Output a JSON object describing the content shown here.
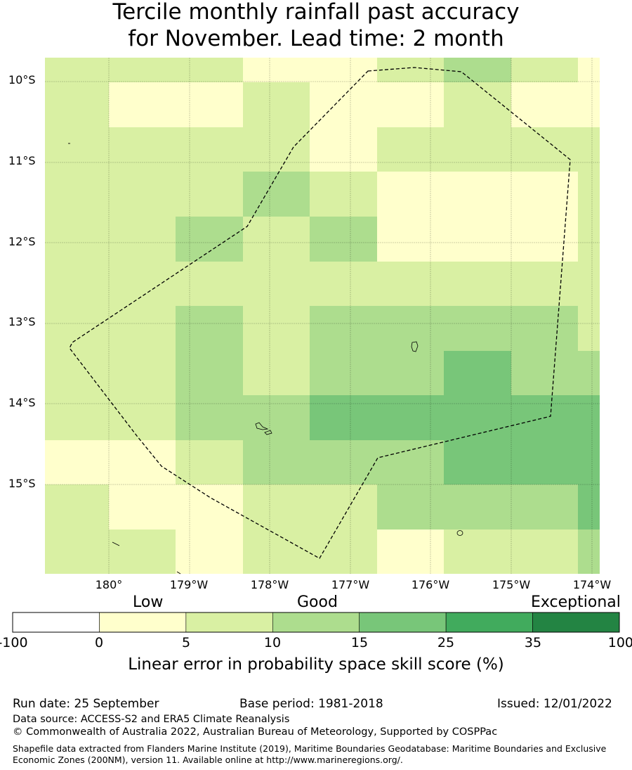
{
  "title": {
    "line1": "Tercile monthly rainfall past accuracy",
    "line2": "for November. Lead time: 2 month"
  },
  "map": {
    "lat_labels": [
      "10°S",
      "11°S",
      "12°S",
      "13°S",
      "14°S",
      "15°S"
    ],
    "lon_labels": [
      "180°",
      "179°W",
      "178°W",
      "177°W",
      "176°W",
      "175°W",
      "174°W"
    ],
    "grid": [
      [
        2,
        2,
        2,
        1,
        1,
        2,
        3,
        2,
        1
      ],
      [
        2,
        1,
        1,
        2,
        1,
        1,
        2,
        1,
        1
      ],
      [
        2,
        2,
        2,
        2,
        1,
        2,
        2,
        2,
        2
      ],
      [
        2,
        2,
        2,
        3,
        2,
        1,
        1,
        1,
        2
      ],
      [
        2,
        2,
        3,
        2,
        3,
        1,
        1,
        1,
        2
      ],
      [
        2,
        2,
        2,
        2,
        2,
        2,
        2,
        2,
        2
      ],
      [
        2,
        2,
        3,
        2,
        3,
        3,
        3,
        3,
        2
      ],
      [
        2,
        2,
        3,
        2,
        3,
        3,
        4,
        3,
        3
      ],
      [
        2,
        2,
        3,
        3,
        4,
        4,
        4,
        4,
        4
      ],
      [
        1,
        1,
        2,
        3,
        3,
        3,
        4,
        4,
        4
      ],
      [
        2,
        1,
        1,
        2,
        2,
        3,
        3,
        3,
        4
      ],
      [
        2,
        2,
        1,
        2,
        2,
        1,
        2,
        2,
        3
      ]
    ],
    "colors": [
      "#ffffff",
      "#ffffcc",
      "#d9f0a3",
      "#addd8e",
      "#78c679",
      "#41ab5d",
      "#238443"
    ]
  },
  "colorbar": {
    "categories": [
      "Low",
      "Good",
      "Exceptional"
    ],
    "ticks": [
      "-100",
      "0",
      "5",
      "10",
      "15",
      "25",
      "35",
      "100"
    ],
    "label": "Linear error in probability space skill score (%)"
  },
  "footer": {
    "run_date": "Run date: 25 September",
    "base_period": "Base period: 1981-2018",
    "issued": "Issued: 12/01/2022",
    "data_source": "Data source: ACCESS-S2 and ERA5 Climate Reanalysis",
    "copyright": "© Commonwealth of Australia 2022, Australian Bureau of Meteorology, Supported by COSPPac",
    "shapefile": "Shapefile data extracted from Flanders Marine Institute (2019), Maritime Boundaries Geodatabase: Maritime Boundaries and Exclusive Economic Zones (200NM), version 11. Available online at http://www.marineregions.org/."
  }
}
